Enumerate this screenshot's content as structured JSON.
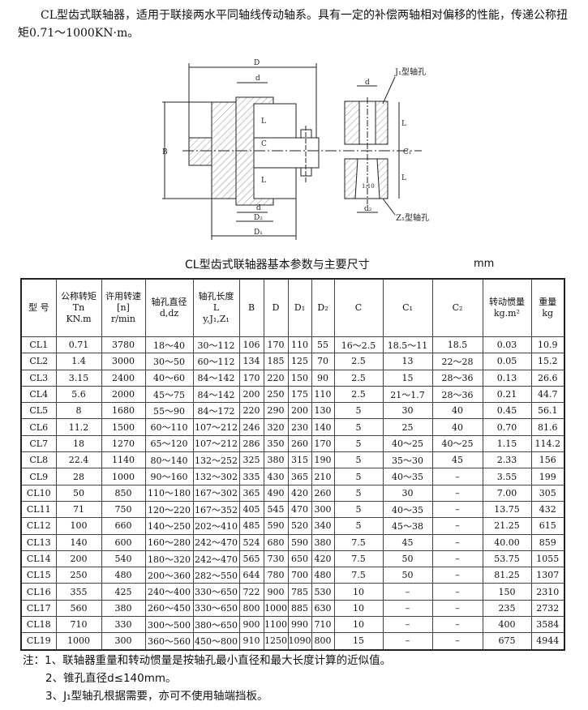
{
  "intro": "CL型齿式联轴器，适用于联接两水平同轴线传动轴系。具有一定的补偿两轴相对偏移的性能，传递公称扭矩0.71～1000KN·m。",
  "drawing": {
    "labels": {
      "D": "D",
      "d": "d",
      "B": "B",
      "L": "L",
      "C": "C",
      "D2": "D₂",
      "D1": "D₁",
      "d2": "d₂",
      "C1": "C₁",
      "taper": "1:10",
      "j1": "J₁型轴孔",
      "z1": "Z₁型轴孔"
    }
  },
  "table_title": "CL型齿式联轴器基本参数与主要尺寸",
  "unit": "mm",
  "headers": [
    [
      "型 号"
    ],
    [
      "公称转矩",
      "Tn",
      "KN.m"
    ],
    [
      "许用转速",
      "[n]",
      "r/min"
    ],
    [
      "轴孔直径",
      "d,dz"
    ],
    [
      "轴孔长度",
      "L",
      "y,J₁,Z₁"
    ],
    [
      "B"
    ],
    [
      "D"
    ],
    [
      "D₁"
    ],
    [
      "D₂"
    ],
    [
      "C"
    ],
    [
      "C₁"
    ],
    [
      "C₂"
    ],
    [
      "转动惯量",
      "kg.m²"
    ],
    [
      "重量",
      "kg"
    ]
  ],
  "rows": [
    [
      "CL1",
      "0.71",
      "3780",
      "18～40",
      "30～112",
      "106",
      "170",
      "110",
      "55",
      "16～2.5",
      "18.5～11",
      "18.5",
      "0.03",
      "10.9"
    ],
    [
      "CL2",
      "1.4",
      "3000",
      "30～50",
      "60～112",
      "134",
      "185",
      "125",
      "70",
      "2.5",
      "13",
      "22～28",
      "0.05",
      "15.2"
    ],
    [
      "CL3",
      "3.15",
      "2400",
      "40～60",
      "84～142",
      "170",
      "220",
      "150",
      "90",
      "2.5",
      "15",
      "28～36",
      "0.13",
      "26.6"
    ],
    [
      "CL4",
      "5.6",
      "2000",
      "45～75",
      "84～142",
      "200",
      "250",
      "175",
      "110",
      "2.5",
      "21～1.7",
      "28～36",
      "0.21",
      "44.7"
    ],
    [
      "CL5",
      "8",
      "1680",
      "55～90",
      "84～172",
      "220",
      "290",
      "200",
      "130",
      "5",
      "30",
      "40",
      "0.45",
      "56.1"
    ],
    [
      "CL6",
      "11.2",
      "1500",
      "60～110",
      "107～212",
      "246",
      "320",
      "230",
      "140",
      "5",
      "25",
      "40",
      "0.70",
      "81.6"
    ],
    [
      "CL7",
      "18",
      "1270",
      "65～120",
      "107～212",
      "286",
      "350",
      "260",
      "170",
      "5",
      "40～25",
      "40～25",
      "1.15",
      "114.2"
    ],
    [
      "CL8",
      "22.4",
      "1140",
      "80～140",
      "132～252",
      "325",
      "380",
      "315",
      "190",
      "5",
      "35～30",
      "45",
      "2.33",
      "156"
    ],
    [
      "CL9",
      "28",
      "1000",
      "90～160",
      "132～302",
      "335",
      "430",
      "365",
      "210",
      "5",
      "40～35",
      "–",
      "3.55",
      "199"
    ],
    [
      "CL10",
      "50",
      "850",
      "110～180",
      "167～302",
      "365",
      "490",
      "420",
      "260",
      "5",
      "30",
      "–",
      "7.00",
      "305"
    ],
    [
      "CL11",
      "71",
      "750",
      "120～220",
      "167～352",
      "405",
      "545",
      "470",
      "300",
      "5",
      "40～35",
      "–",
      "13.75",
      "432"
    ],
    [
      "CL12",
      "100",
      "660",
      "140～250",
      "202～410",
      "485",
      "590",
      "520",
      "340",
      "5",
      "45～38",
      "–",
      "21.25",
      "615"
    ],
    [
      "CL13",
      "140",
      "600",
      "160～280",
      "242～470",
      "524",
      "680",
      "590",
      "380",
      "7.5",
      "45",
      "–",
      "40.00",
      "859"
    ],
    [
      "CL14",
      "200",
      "540",
      "180～320",
      "242～470",
      "565",
      "730",
      "650",
      "420",
      "7.5",
      "50",
      "–",
      "53.75",
      "1055"
    ],
    [
      "CL15",
      "250",
      "480",
      "200～360",
      "282～550",
      "644",
      "780",
      "700",
      "480",
      "7.5",
      "50",
      "–",
      "81.25",
      "1307"
    ],
    [
      "CL16",
      "355",
      "425",
      "240～400",
      "330～650",
      "722",
      "900",
      "785",
      "530",
      "10",
      "–",
      "–",
      "150",
      "2310"
    ],
    [
      "CL17",
      "560",
      "380",
      "260～450",
      "330～650",
      "800",
      "1000",
      "885",
      "630",
      "10",
      "–",
      "–",
      "235",
      "2732"
    ],
    [
      "CL18",
      "710",
      "330",
      "300～500",
      "380～650",
      "900",
      "1100",
      "990",
      "710",
      "10",
      "–",
      "–",
      "400",
      "3584"
    ],
    [
      "CL19",
      "1000",
      "300",
      "360～560",
      "450～800",
      "910",
      "1250",
      "1090",
      "800",
      "15",
      "–",
      "–",
      "675",
      "4944"
    ]
  ],
  "notes": [
    "注：1、联轴器重量和转动惯量是按轴孔最小直径和最大长度计算的近似值。",
    "2、锥孔直径d≤140mm。",
    "3、J₁型轴孔根据需要，亦可不使用轴端挡板。"
  ]
}
